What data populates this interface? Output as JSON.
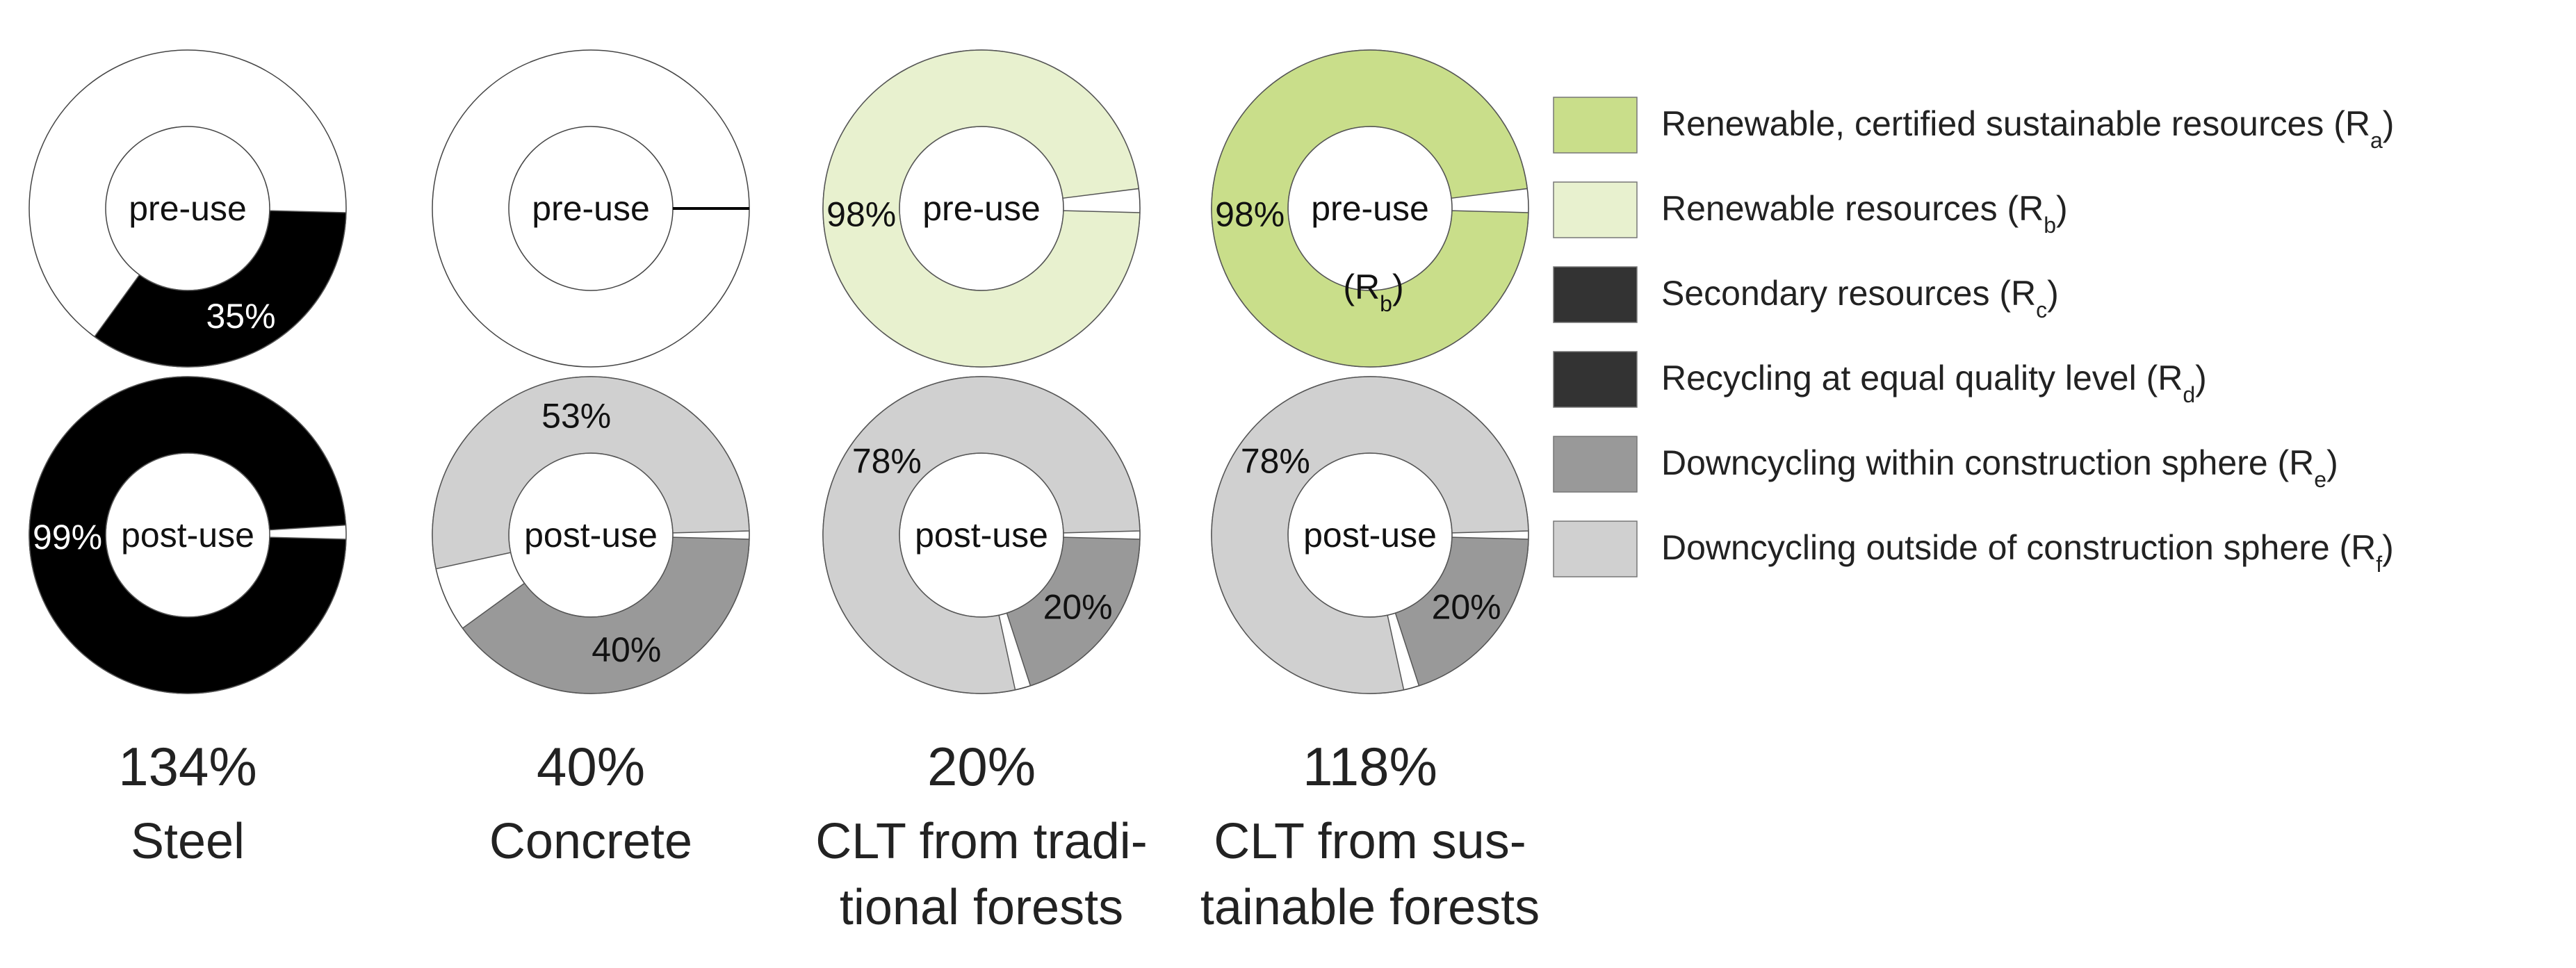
{
  "chart_data": {
    "type": "donut",
    "rings": [
      "pre-use",
      "post-use"
    ],
    "legend": [
      {
        "key": "Ra",
        "text": "Renewable, certified sustainable resources (R",
        "sub": "a",
        "color": "#c9de8a"
      },
      {
        "key": "Rb",
        "text": "Renewable resources (R",
        "sub": "b",
        "color": "#e8f1cf"
      },
      {
        "key": "Rc",
        "text": "Secondary resources (R",
        "sub": "c",
        "color": "#333333"
      },
      {
        "key": "Rd",
        "text": "Recycling at equal quality level (R",
        "sub": "d",
        "color": "#333333"
      },
      {
        "key": "Re",
        "text": "Downcycling within construction sphere (R",
        "sub": "e",
        "color": "#999999"
      },
      {
        "key": "Rf",
        "text": "Downcycling outside of construction sphere (R",
        "sub": "f",
        "color": "#d0d0d0"
      }
    ],
    "materials": [
      {
        "name_lines": [
          "Steel"
        ],
        "score": "134%",
        "pre": {
          "center_label": "pre-use",
          "segments": [
            {
              "key": "Rc",
              "value": 35,
              "label": "35%",
              "color": "#000000"
            }
          ]
        },
        "post": {
          "center_label": "post-use",
          "segments": [
            {
              "key": "Rd",
              "value": 99,
              "label": "99%",
              "color": "#000000"
            }
          ]
        }
      },
      {
        "name_lines": [
          "Concrete"
        ],
        "score": "40%",
        "pre": {
          "center_label": "pre-use",
          "segments": []
        },
        "post": {
          "center_label": "post-use",
          "segments": [
            {
              "key": "Re",
              "value": 40,
              "label": "40%",
              "color": "#999999"
            },
            {
              "key": "Rf",
              "value": 53,
              "label": "53%",
              "color": "#d0d0d0"
            }
          ]
        }
      },
      {
        "name_lines": [
          "CLT from tradi-",
          "tional forests"
        ],
        "score": "20%",
        "pre": {
          "center_label": "pre-use",
          "segments": [
            {
              "key": "Rb",
              "value": 98,
              "label": "98%",
              "color": "#e8f1cf"
            }
          ]
        },
        "post": {
          "center_label": "post-use",
          "segments": [
            {
              "key": "Re",
              "value": 20,
              "label": "20%",
              "color": "#999999"
            },
            {
              "key": "Rf",
              "value": 78,
              "label": "78%",
              "color": "#d0d0d0"
            }
          ]
        }
      },
      {
        "name_lines": [
          "CLT from sus-",
          "tainable forests"
        ],
        "score": "118%",
        "pre": {
          "center_label": "pre-use",
          "segments": [
            {
              "key": "Ra",
              "value": 98,
              "label": "98%",
              "color": "#c9de8a"
            }
          ],
          "extra_label": "(R",
          "extra_sub": "b"
        },
        "post": {
          "center_label": "post-use",
          "segments": [
            {
              "key": "Re",
              "value": 20,
              "label": "20%",
              "color": "#999999"
            },
            {
              "key": "Rf",
              "value": 78,
              "label": "78%",
              "color": "#d0d0d0"
            }
          ]
        }
      }
    ]
  }
}
